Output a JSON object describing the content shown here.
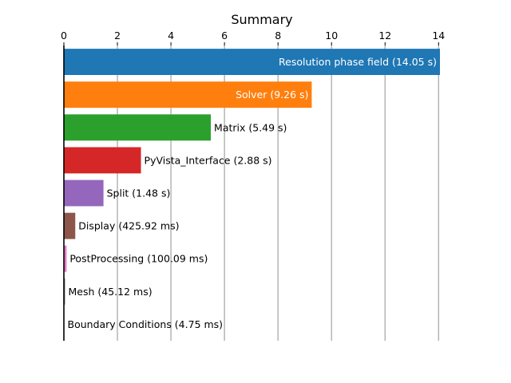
{
  "chart_data": {
    "type": "bar",
    "orientation": "horizontal",
    "title": "Summary",
    "xlabel": "",
    "ylabel": "",
    "xlim": [
      0,
      14.05
    ],
    "xticks": [
      0,
      2,
      4,
      6,
      8,
      10,
      12,
      14
    ],
    "x_axis_position": "top",
    "grid": "vertical",
    "legend": "none",
    "bars": [
      {
        "label": "Resolution phase field (14.05 s)",
        "value": 14.05,
        "color": "#1f77b4",
        "label_inside": true
      },
      {
        "label": "Solver (9.26 s)",
        "value": 9.26,
        "color": "#ff7f0e",
        "label_inside": true
      },
      {
        "label": "Matrix (5.49 s)",
        "value": 5.49,
        "color": "#2ca02c",
        "label_inside": false
      },
      {
        "label": "PyVista_Interface (2.88 s)",
        "value": 2.88,
        "color": "#d62728",
        "label_inside": false
      },
      {
        "label": "Split (1.48 s)",
        "value": 1.48,
        "color": "#9467bd",
        "label_inside": false
      },
      {
        "label": "Display (425.92 ms)",
        "value": 0.42592,
        "color": "#8c564b",
        "label_inside": false
      },
      {
        "label": "PostProcessing (100.09 ms)",
        "value": 0.10009,
        "color": "#e377c2",
        "label_inside": false
      },
      {
        "label": "Mesh (45.12 ms)",
        "value": 0.04512,
        "color": "#7f7f7f",
        "label_inside": false
      },
      {
        "label": "Boundary Conditions (4.75 ms)",
        "value": 0.00475,
        "color": "#bcbd22",
        "label_inside": false
      }
    ]
  }
}
